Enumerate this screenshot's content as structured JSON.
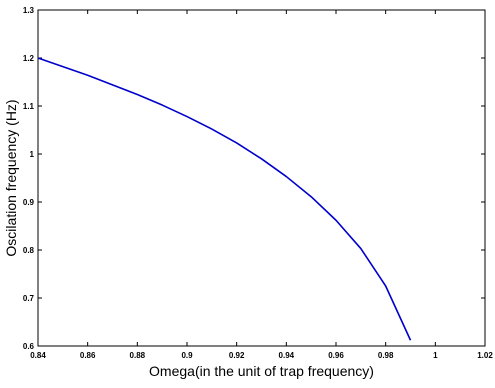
{
  "chart_data": {
    "type": "line",
    "title": "",
    "xlabel": "Omega(in the unit of trap frequency)",
    "ylabel": "Oscilation frequency (Hz)",
    "xlim": [
      0.84,
      1.02
    ],
    "ylim": [
      0.6,
      1.3
    ],
    "xticks": [
      0.84,
      0.86,
      0.88,
      0.9,
      0.92,
      0.94,
      0.96,
      0.98,
      1,
      1.02
    ],
    "xtick_labels": [
      "0.84",
      "0.86",
      "0.88",
      "0.9",
      "0.92",
      "0.94",
      "0.96",
      "0.98",
      "1",
      "1.02"
    ],
    "yticks": [
      0.6,
      0.7,
      0.8,
      0.9,
      1.0,
      1.1,
      1.2,
      1.3
    ],
    "ytick_labels": [
      "0.6",
      "0.7",
      "0.8",
      "0.9",
      "1",
      "1.1",
      "1.2",
      "1.3"
    ],
    "grid": false,
    "legend": "none",
    "series": [
      {
        "color": "#0000cc",
        "x": [
          0.84,
          0.85,
          0.86,
          0.87,
          0.88,
          0.89,
          0.9,
          0.91,
          0.92,
          0.93,
          0.94,
          0.95,
          0.96,
          0.97,
          0.98,
          0.99
        ],
        "y": [
          1.2,
          1.182,
          1.164,
          1.144,
          1.124,
          1.102,
          1.078,
          1.052,
          1.023,
          0.99,
          0.953,
          0.911,
          0.862,
          0.803,
          0.725,
          0.612
        ]
      }
    ]
  }
}
